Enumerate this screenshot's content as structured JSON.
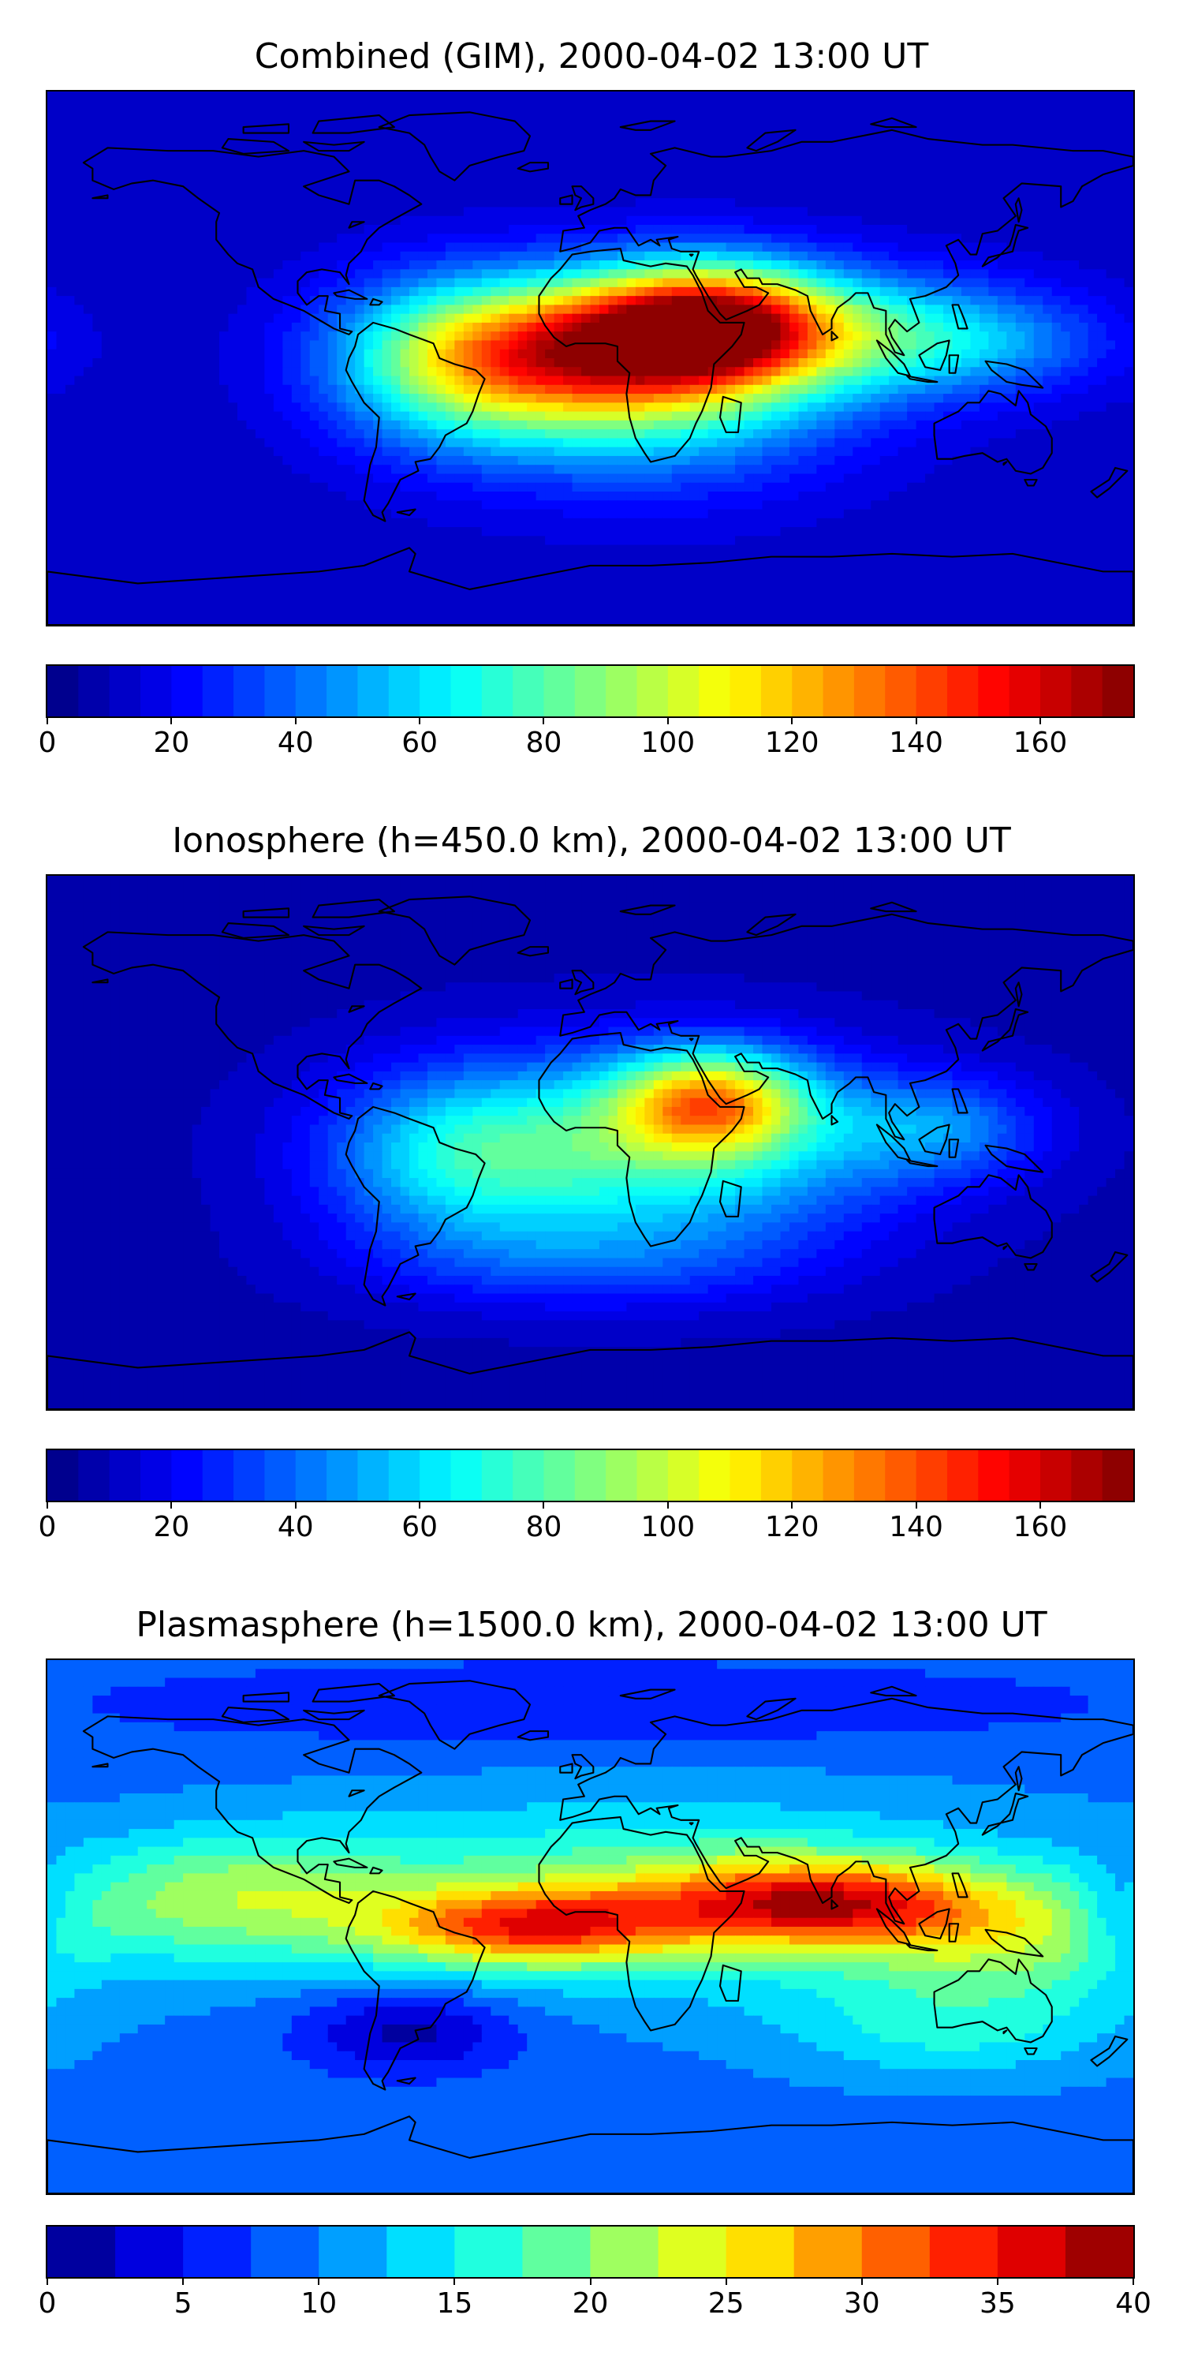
{
  "panels": [
    {
      "title": "Combined (GIM), 2000-04-02 13:00 UT",
      "colorbar": {
        "min": 0,
        "max": 175,
        "levels": 35,
        "ticks": [
          0,
          20,
          40,
          60,
          80,
          100,
          120,
          140,
          160
        ]
      },
      "field": {
        "base": 12,
        "blobs": [
          {
            "lon": 40,
            "lat": 12,
            "amp": 120,
            "slon": 28,
            "slat": 14
          },
          {
            "lon": -5,
            "lat": 3,
            "amp": 85,
            "slon": 40,
            "slat": 16
          },
          {
            "lon": 20,
            "lat": -10,
            "amp": 55,
            "slon": 45,
            "slat": 22
          },
          {
            "lon": 95,
            "lat": 8,
            "amp": 45,
            "slon": 35,
            "slat": 14
          },
          {
            "lon": -45,
            "lat": -2,
            "amp": 45,
            "slon": 30,
            "slat": 20
          },
          {
            "lon": 135,
            "lat": 5,
            "amp": 20,
            "slon": 30,
            "slat": 12
          }
        ]
      }
    },
    {
      "title": "Ionosphere  (h=450.0 km), 2000-04-02 13:00 UT",
      "colorbar": {
        "min": 0,
        "max": 175,
        "levels": 35,
        "ticks": [
          0,
          20,
          40,
          60,
          80,
          100,
          120,
          140,
          160
        ]
      },
      "field": {
        "base": 8,
        "blobs": [
          {
            "lon": 40,
            "lat": 14,
            "amp": 85,
            "slon": 22,
            "slat": 12
          },
          {
            "lon": 20,
            "lat": -2,
            "amp": 65,
            "slon": 55,
            "slat": 22
          },
          {
            "lon": -45,
            "lat": -5,
            "amp": 35,
            "slon": 30,
            "slat": 20
          },
          {
            "lon": 115,
            "lat": 5,
            "amp": 30,
            "slon": 25,
            "slat": 12
          },
          {
            "lon": 0,
            "lat": -40,
            "amp": 20,
            "slon": 50,
            "slat": 12
          }
        ]
      }
    },
    {
      "title": "Plasmasphere (h=1500.0 km), 2000-04-02 13:00 UT",
      "colorbar": {
        "min": 0,
        "max": 40,
        "levels": 16,
        "ticks": [
          0,
          5,
          10,
          15,
          20,
          25,
          30,
          35,
          40
        ]
      },
      "field": {
        "base": 9,
        "blobs": [
          {
            "lon": 75,
            "lat": 8,
            "amp": 20,
            "slon": 40,
            "slat": 10
          },
          {
            "lon": -20,
            "lat": 0,
            "amp": 18,
            "slon": 35,
            "slat": 9
          },
          {
            "lon": 20,
            "lat": 10,
            "amp": 10,
            "slon": 90,
            "slat": 22
          },
          {
            "lon": -120,
            "lat": 10,
            "amp": 10,
            "slon": 40,
            "slat": 15
          },
          {
            "lon": 140,
            "lat": -5,
            "amp": 9,
            "slon": 40,
            "slat": 14
          },
          {
            "lon": 120,
            "lat": -35,
            "amp": 6,
            "slon": 40,
            "slat": 12
          },
          {
            "lon": -60,
            "lat": -35,
            "amp": -8,
            "slon": 25,
            "slat": 10
          },
          {
            "lon": 175,
            "lat": 5,
            "amp": -6,
            "slon": 10,
            "slat": 12
          },
          {
            "lon": 0,
            "lat": 75,
            "amp": -4,
            "slon": 120,
            "slat": 10
          }
        ]
      }
    }
  ],
  "colormap": "jet",
  "coastline_color": "#000000"
}
